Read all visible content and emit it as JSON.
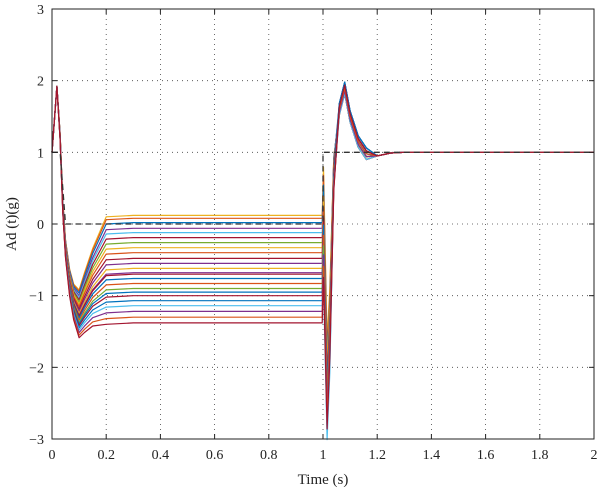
{
  "chart_data": {
    "type": "line",
    "title": "",
    "xlabel": "Time (s)",
    "ylabel": "Ad (t)(g)",
    "xlim": [
      0,
      2
    ],
    "ylim": [
      -3,
      3
    ],
    "xticks": [
      0,
      0.2,
      0.4,
      0.6,
      0.8,
      1,
      1.2,
      1.4,
      1.6,
      1.8,
      2
    ],
    "yticks": [
      -3,
      -2,
      -1,
      0,
      1,
      2,
      3
    ],
    "xtick_labels": [
      "0",
      "0.2",
      "0.4",
      "0.6",
      "0.8",
      "1",
      "1.2",
      "1.4",
      "1.6",
      "1.8",
      "2"
    ],
    "ytick_labels": [
      "−3",
      "−2",
      "−1",
      "0",
      "1",
      "2",
      "3"
    ],
    "grid": true,
    "grid_style": "dotted",
    "legend": "none",
    "reference": {
      "style": "dashed",
      "color": "#333333",
      "x": [
        0,
        0.03,
        0.05,
        0.08,
        1.0,
        1.0,
        1.2,
        2.0
      ],
      "y": [
        1,
        1,
        0,
        0,
        0,
        1,
        1,
        1
      ]
    },
    "series_shape": {
      "x": [
        0,
        0.018,
        0.03,
        0.04,
        0.05,
        0.065,
        0.08,
        0.1,
        0.12,
        0.15,
        0.2,
        0.3,
        0.5,
        0.8,
        0.997,
        1.002,
        1.015,
        1.025,
        1.04,
        1.06,
        1.08,
        1.1,
        1.13,
        1.16,
        1.2,
        1.25,
        1.3,
        2.0
      ],
      "y": [
        1,
        1.92,
        1.2,
        0.2,
        -0.4,
        -0.9,
        -1.2,
        -1.4,
        -1.28,
        -1.12,
        -0.98,
        -0.96,
        -0.96,
        -0.96,
        -0.96,
        -0.2,
        -2.4,
        -1.5,
        0.6,
        1.6,
        1.9,
        1.5,
        1.15,
        0.98,
        0.95,
        0.99,
        1.0,
        1.0
      ]
    },
    "series": [
      {
        "color": "#edb120",
        "plateau": 0.12
      },
      {
        "color": "#d95319",
        "plateau": 0.08
      },
      {
        "color": "#0072bd",
        "plateau": 0.02
      },
      {
        "color": "#7e2f8e",
        "plateau": -0.06
      },
      {
        "color": "#4dbeee",
        "plateau": -0.12
      },
      {
        "color": "#a2142f",
        "plateau": -0.19
      },
      {
        "color": "#77ac30",
        "plateau": -0.26
      },
      {
        "color": "#edb120",
        "plateau": -0.33
      },
      {
        "color": "#d95319",
        "plateau": -0.4
      },
      {
        "color": "#a2142f",
        "plateau": -0.48
      },
      {
        "color": "#7e2f8e",
        "plateau": -0.55
      },
      {
        "color": "#edb120",
        "plateau": -0.62
      },
      {
        "color": "#7e2f8e",
        "plateau": -0.68
      },
      {
        "color": "#a2142f",
        "plateau": -0.7
      },
      {
        "color": "#0072bd",
        "plateau": -0.76
      },
      {
        "color": "#d95319",
        "plateau": -0.83
      },
      {
        "color": "#77ac30",
        "plateau": -0.9
      },
      {
        "color": "#0072bd",
        "plateau": -0.95
      },
      {
        "color": "#a2142f",
        "plateau": -1.0
      },
      {
        "color": "#0072bd",
        "plateau": -1.07
      },
      {
        "color": "#4dbeee",
        "plateau": -1.14
      },
      {
        "color": "#7e2f8e",
        "plateau": -1.22
      },
      {
        "color": "#d95319",
        "plateau": -1.3
      },
      {
        "color": "#a2142f",
        "plateau": -1.38
      }
    ]
  }
}
